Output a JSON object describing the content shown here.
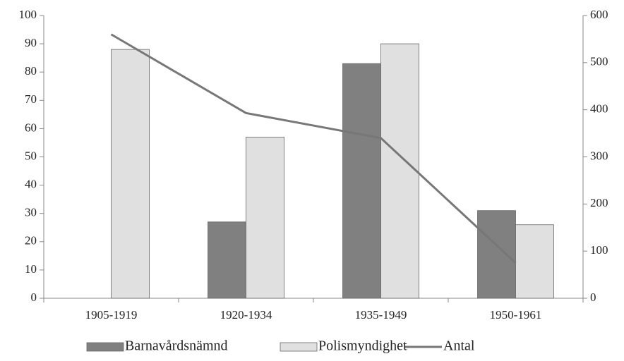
{
  "chart_data": {
    "type": "bar",
    "categories": [
      "1905-1919",
      "1920-1934",
      "1935-1949",
      "1950-1961"
    ],
    "series": [
      {
        "name": "Barnavårdsnämnd",
        "type": "bar",
        "color": "#808080",
        "values": [
          0,
          27,
          83,
          31
        ]
      },
      {
        "name": "Polismyndighet",
        "type": "bar",
        "color": "#e0e0e0",
        "values": [
          88,
          57,
          90,
          26
        ]
      },
      {
        "name": "Antal",
        "type": "line",
        "axis": "y2",
        "color": "#777777",
        "values": [
          560,
          393,
          340,
          75
        ]
      }
    ],
    "ylim": [
      0,
      100
    ],
    "yticks": [
      0,
      10,
      20,
      30,
      40,
      50,
      60,
      70,
      80,
      90,
      100
    ],
    "y2lim": [
      0,
      600
    ],
    "y2ticks": [
      0,
      100,
      200,
      300,
      400,
      500,
      600
    ],
    "legend": "bottom"
  }
}
